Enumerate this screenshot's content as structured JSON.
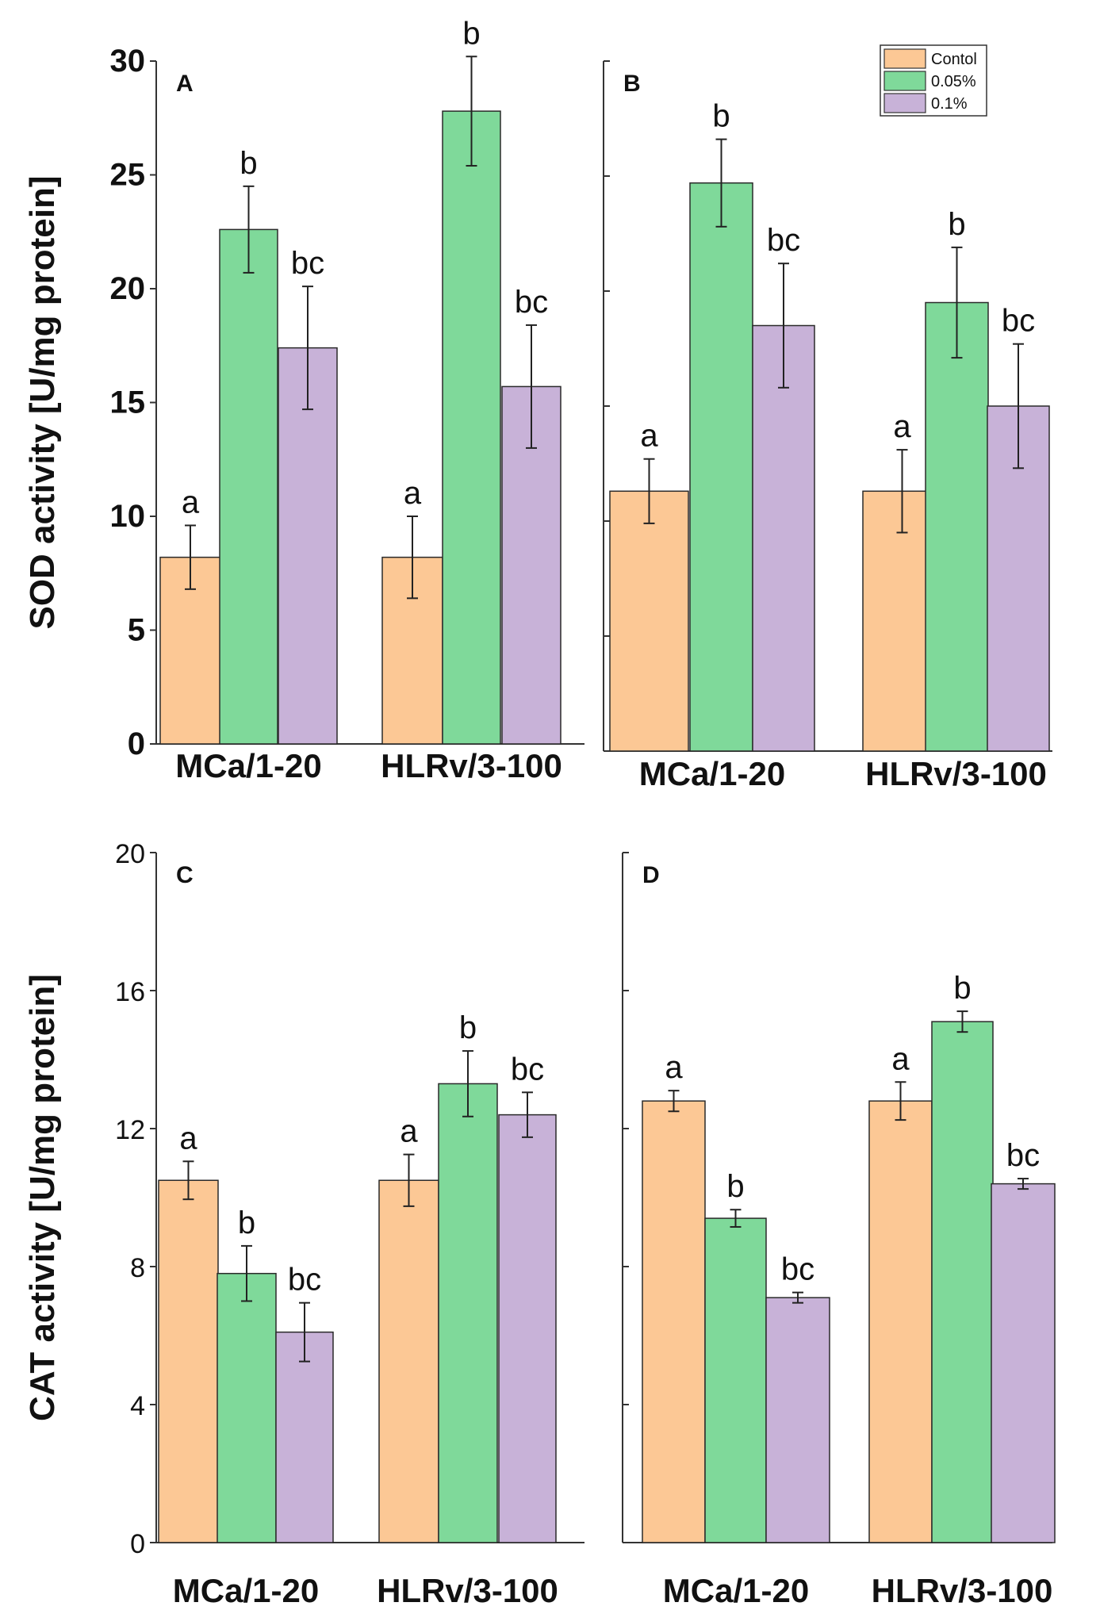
{
  "chart_data": [
    {
      "type": "bar",
      "panel": "A",
      "ylabel": "SOD activity [U/mg protein]",
      "ylim": [
        0,
        30
      ],
      "yticks": [
        "0",
        "5",
        "10",
        "15",
        "20",
        "25",
        "30"
      ],
      "categories": [
        "MCa/1-20",
        "HLRv/3-100"
      ],
      "series": [
        {
          "name": "Contol",
          "values": [
            8.2,
            8.2
          ],
          "errors": [
            1.4,
            1.8
          ],
          "letters": [
            "a",
            "a"
          ]
        },
        {
          "name": "0.05%",
          "values": [
            22.6,
            27.8
          ],
          "errors": [
            1.9,
            2.4
          ],
          "letters": [
            "b",
            "b"
          ]
        },
        {
          "name": "0.1%",
          "values": [
            17.4,
            15.7
          ],
          "errors": [
            2.7,
            2.7
          ],
          "letters": [
            "bc",
            "bc"
          ]
        }
      ]
    },
    {
      "type": "bar",
      "panel": "B",
      "ylim": [
        0,
        30
      ],
      "categories": [
        "MCa/1-20",
        "HLRv/3-100"
      ],
      "series": [
        {
          "name": "Contol",
          "values": [
            11.3,
            11.3
          ],
          "errors": [
            1.4,
            1.8
          ],
          "letters": [
            "a",
            "a"
          ]
        },
        {
          "name": "0.05%",
          "values": [
            24.7,
            19.5
          ],
          "errors": [
            1.9,
            2.4
          ],
          "letters": [
            "b",
            "b"
          ]
        },
        {
          "name": "0.1%",
          "values": [
            18.5,
            15.0
          ],
          "errors": [
            2.7,
            2.7
          ],
          "letters": [
            "bc",
            "bc"
          ]
        }
      ]
    },
    {
      "type": "bar",
      "panel": "C",
      "ylabel": "CAT activity [U/mg protein]",
      "ylim": [
        0,
        20
      ],
      "yticks": [
        "0",
        "4",
        "8",
        "12",
        "16",
        "20"
      ],
      "categories": [
        "MCa/1-20",
        "HLRv/3-100"
      ],
      "series": [
        {
          "name": "Contol",
          "values": [
            10.5,
            10.5
          ],
          "errors": [
            0.55,
            0.75
          ],
          "letters": [
            "a",
            "a"
          ]
        },
        {
          "name": "0.05%",
          "values": [
            7.8,
            13.3
          ],
          "errors": [
            0.8,
            0.95
          ],
          "letters": [
            "b",
            "b"
          ]
        },
        {
          "name": "0.1%",
          "values": [
            6.1,
            12.4
          ],
          "errors": [
            0.85,
            0.65
          ],
          "letters": [
            "bc",
            "bc"
          ]
        }
      ]
    },
    {
      "type": "bar",
      "panel": "D",
      "ylim": [
        0,
        20
      ],
      "categories": [
        "MCa/1-20",
        "HLRv/3-100"
      ],
      "series": [
        {
          "name": "Contol",
          "values": [
            12.8,
            12.8
          ],
          "errors": [
            0.3,
            0.55
          ],
          "letters": [
            "a",
            "a"
          ]
        },
        {
          "name": "0.05%",
          "values": [
            9.4,
            15.1
          ],
          "errors": [
            0.25,
            0.3
          ],
          "letters": [
            "b",
            "b"
          ]
        },
        {
          "name": "0.1%",
          "values": [
            7.1,
            10.4
          ],
          "errors": [
            0.15,
            0.15
          ],
          "letters": [
            "bc",
            "bc"
          ]
        }
      ]
    }
  ],
  "legend": {
    "position": "top-right of panel B",
    "entries": [
      "Contol",
      "0.05%",
      "0.1%"
    ]
  },
  "colors": {
    "Contol": "#FCC895",
    "0.05%": "#7FD99A",
    "0.1%": "#C8B2D8",
    "axis": "#333333",
    "bar_edge": "#2a2a2a"
  }
}
